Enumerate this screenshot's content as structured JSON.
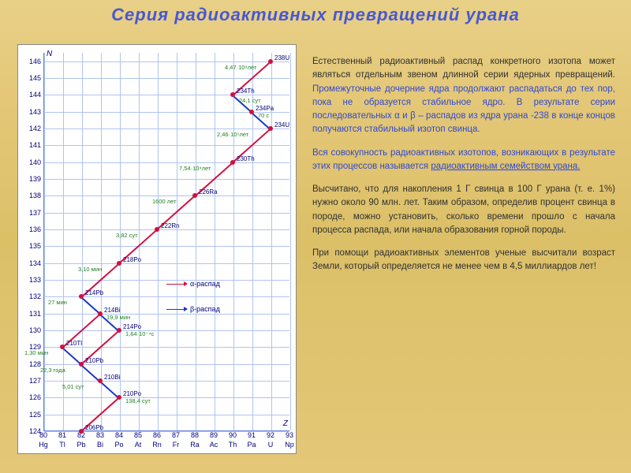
{
  "title": "Серия радиоактивных превращений урана",
  "chart": {
    "type": "line",
    "ylabel": "N",
    "xlabel": "Z",
    "y_axis_ticks": [
      124,
      125,
      126,
      127,
      128,
      129,
      130,
      131,
      132,
      133,
      134,
      135,
      136,
      137,
      138,
      139,
      140,
      141,
      142,
      143,
      144,
      145,
      146
    ],
    "x_axis": [
      {
        "z": 80,
        "el": "Hg"
      },
      {
        "z": 81,
        "el": "Tl"
      },
      {
        "z": 82,
        "el": "Pb"
      },
      {
        "z": 83,
        "el": "Bi"
      },
      {
        "z": 84,
        "el": "Po"
      },
      {
        "z": 85,
        "el": "At"
      },
      {
        "z": 86,
        "el": "Rn"
      },
      {
        "z": 87,
        "el": "Fr"
      },
      {
        "z": 88,
        "el": "Ra"
      },
      {
        "z": 89,
        "el": "Ac"
      },
      {
        "z": 90,
        "el": "Th"
      },
      {
        "z": 91,
        "el": "Pa"
      },
      {
        "z": 92,
        "el": "U"
      },
      {
        "z": 93,
        "el": "Np"
      }
    ],
    "ylim": [
      124,
      146.5
    ],
    "xlim": [
      80,
      93
    ],
    "nuclides": [
      {
        "z": 92,
        "n": 146,
        "label": "238U",
        "hl": "4,47·10⁹лет",
        "hl_dx": -58,
        "hl_dy": 3
      },
      {
        "z": 90,
        "n": 144,
        "label": "234Th",
        "hl": "24,1 сут",
        "hl_dx": 8,
        "hl_dy": 3
      },
      {
        "z": 91,
        "n": 143,
        "label": "234Pa",
        "hl": "70 с",
        "hl_dx": 8,
        "hl_dy": 0
      },
      {
        "z": 92,
        "n": 142,
        "label": "234U",
        "hl": "2,46·10⁵лет",
        "hl_dx": -68,
        "hl_dy": 3
      },
      {
        "z": 90,
        "n": 140,
        "label": "230Th",
        "hl": "7,54·10⁴лет",
        "hl_dx": -68,
        "hl_dy": 3
      },
      {
        "z": 88,
        "n": 138,
        "label": "226Ra",
        "hl": "1600 лет",
        "hl_dx": -54,
        "hl_dy": 3
      },
      {
        "z": 86,
        "n": 136,
        "label": "222Rn",
        "hl": "3,82 сут",
        "hl_dx": -52,
        "hl_dy": 3
      },
      {
        "z": 84,
        "n": 134,
        "label": "218Po",
        "hl": "3,10 мин",
        "hl_dx": -52,
        "hl_dy": 3
      },
      {
        "z": 82,
        "n": 132,
        "label": "214Pb",
        "hl": "27 мин",
        "hl_dx": -42,
        "hl_dy": 3
      },
      {
        "z": 83,
        "n": 131,
        "label": "214Bi",
        "hl": "19,9 мин",
        "hl_dx": 8,
        "hl_dy": 0
      },
      {
        "z": 84,
        "n": 130,
        "label": "214Po",
        "hl": "1,64·10⁻⁴с",
        "hl_dx": 8,
        "hl_dy": 0
      },
      {
        "z": 81,
        "n": 129,
        "label": "210Tl",
        "hl": "1,30 мин",
        "hl_dx": -48,
        "hl_dy": 3
      },
      {
        "z": 82,
        "n": 128,
        "label": "210Pb",
        "hl": "22,3 года",
        "hl_dx": -52,
        "hl_dy": 3
      },
      {
        "z": 83,
        "n": 127,
        "label": "210Bi",
        "hl": "5,01 сут",
        "hl_dx": -48,
        "hl_dy": 3
      },
      {
        "z": 84,
        "n": 126,
        "label": "210Po",
        "hl": "138,4 сут",
        "hl_dx": 8,
        "hl_dy": 0
      },
      {
        "z": 82,
        "n": 124,
        "label": "206Pb",
        "hl": "",
        "hl_dx": 0,
        "hl_dy": 0
      }
    ],
    "decays": [
      {
        "from": 0,
        "to": 1,
        "type": "a"
      },
      {
        "from": 1,
        "to": 2,
        "type": "b"
      },
      {
        "from": 2,
        "to": 3,
        "type": "b"
      },
      {
        "from": 3,
        "to": 4,
        "type": "a"
      },
      {
        "from": 4,
        "to": 5,
        "type": "a"
      },
      {
        "from": 5,
        "to": 6,
        "type": "a"
      },
      {
        "from": 6,
        "to": 7,
        "type": "a"
      },
      {
        "from": 7,
        "to": 8,
        "type": "a"
      },
      {
        "from": 8,
        "to": 9,
        "type": "b"
      },
      {
        "from": 9,
        "to": 10,
        "type": "b"
      },
      {
        "from": 9,
        "to": 11,
        "type": "a"
      },
      {
        "from": 10,
        "to": 12,
        "type": "a"
      },
      {
        "from": 11,
        "to": 12,
        "type": "b"
      },
      {
        "from": 12,
        "to": 13,
        "type": "b"
      },
      {
        "from": 13,
        "to": 14,
        "type": "b"
      },
      {
        "from": 14,
        "to": 15,
        "type": "a"
      }
    ],
    "legend": {
      "alpha": "α-распад",
      "beta": "β-распад"
    },
    "colors": {
      "alpha": "#d01040",
      "beta": "#1838c0",
      "grid": "#b0c4f0",
      "halflife": "#208020"
    }
  },
  "text": {
    "p1a": "Естественный радиоактивный распад конкретного изотопа может являться отдельным звеном длинной серии  ядерных превращений. ",
    "p1b": "Промежуточные дочерние ядра продолжают распадаться до тех пор, пока не образуется стабильное ядро. В результате серии последовательных α и β – распадов из ядра урана -238  в конце концов получаются стабильный  изотоп свинца.",
    "p2a": "Вся совокупность радиоактивных изотопов, возникающих в результате этих процессов называется ",
    "p2b": "радиоактивным семейством урана.",
    "p3": "Высчитано, что для накопления 1 Г свинца в 100 Г урана (т. е. 1%) нужно около 90 млн. лет. Таким образом, определив процент свинца в породе, можно установить, сколько времени прошло с начала процесса распада, или начала образования горной породы.",
    "p4": "При помощи радиоактивных элементов ученые высчитали возраст Земли, который определяется не менее чем в 4,5  миллиардов лет!"
  }
}
